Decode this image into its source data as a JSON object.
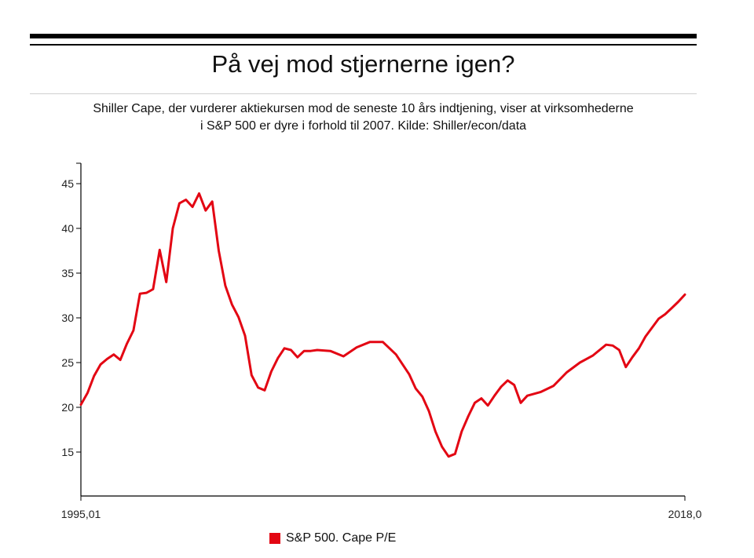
{
  "title": "På vej mod stjernerne igen?",
  "subtitle": {
    "line1": "Shiller Cape, der vurderer aktiekursen mod de seneste 10 års indtjening, viser at virksomhederne",
    "line2": "i S&P 500 er dyre i forhold til 2007. Kilde: Shiller/econ/data"
  },
  "chart_data": {
    "type": "line",
    "title": "På vej mod stjernerne igen?",
    "xlabel": "",
    "ylabel": "",
    "x_tick_labels": [
      "1995,01",
      "2018,0"
    ],
    "xlim": [
      1995.0,
      2018.0
    ],
    "ylim": [
      10,
      47
    ],
    "y_ticks": [
      15,
      20,
      25,
      30,
      35,
      40,
      45
    ],
    "grid": false,
    "legend_position": "bottom",
    "series": [
      {
        "name": "S&P 500. Cape P/E",
        "color": "#e30613",
        "x": [
          1995.0,
          1995.25,
          1995.5,
          1995.75,
          1996.0,
          1996.25,
          1996.5,
          1996.75,
          1997.0,
          1997.25,
          1997.5,
          1997.75,
          1998.0,
          1998.25,
          1998.5,
          1998.75,
          1999.0,
          1999.25,
          1999.5,
          1999.75,
          2000.0,
          2000.25,
          2000.5,
          2000.75,
          2001.0,
          2001.25,
          2001.5,
          2001.75,
          2002.0,
          2002.25,
          2002.5,
          2002.75,
          2003.0,
          2003.25,
          2003.5,
          2003.75,
          2004.0,
          2004.5,
          2005.0,
          2005.5,
          2006.0,
          2006.5,
          2007.0,
          2007.5,
          2007.75,
          2008.0,
          2008.25,
          2008.5,
          2008.75,
          2009.0,
          2009.25,
          2009.5,
          2009.75,
          2010.0,
          2010.25,
          2010.5,
          2010.75,
          2011.0,
          2011.25,
          2011.5,
          2011.75,
          2012.0,
          2012.5,
          2013.0,
          2013.5,
          2014.0,
          2014.5,
          2015.0,
          2015.25,
          2015.5,
          2015.75,
          2016.0,
          2016.25,
          2016.5,
          2016.75,
          2017.0,
          2017.25,
          2017.5,
          2017.75,
          2018.0
        ],
        "values": [
          20.3,
          21.6,
          23.5,
          24.8,
          25.4,
          25.9,
          25.3,
          27.1,
          28.6,
          32.7,
          32.8,
          33.2,
          37.6,
          34.0,
          40.0,
          42.8,
          43.2,
          42.4,
          43.9,
          42.0,
          43.0,
          37.5,
          33.6,
          31.5,
          30.1,
          28.0,
          23.6,
          22.2,
          21.9,
          24.0,
          25.5,
          26.6,
          26.4,
          25.6,
          26.3,
          26.3,
          26.4,
          26.3,
          25.7,
          26.7,
          27.3,
          27.3,
          25.9,
          23.7,
          22.1,
          21.2,
          19.6,
          17.3,
          15.6,
          14.5,
          14.8,
          17.3,
          19.0,
          20.5,
          21.0,
          20.2,
          21.3,
          22.3,
          23.0,
          22.5,
          20.5,
          21.3,
          21.7,
          22.4,
          23.9,
          25.0,
          25.8,
          27.0,
          26.9,
          26.4,
          24.5,
          25.6,
          26.6,
          27.9,
          28.9,
          29.9,
          30.4,
          31.1,
          31.8,
          32.6
        ]
      }
    ]
  },
  "legend": {
    "label": "S&P 500. Cape P/E",
    "swatch_color": "#e30613"
  }
}
